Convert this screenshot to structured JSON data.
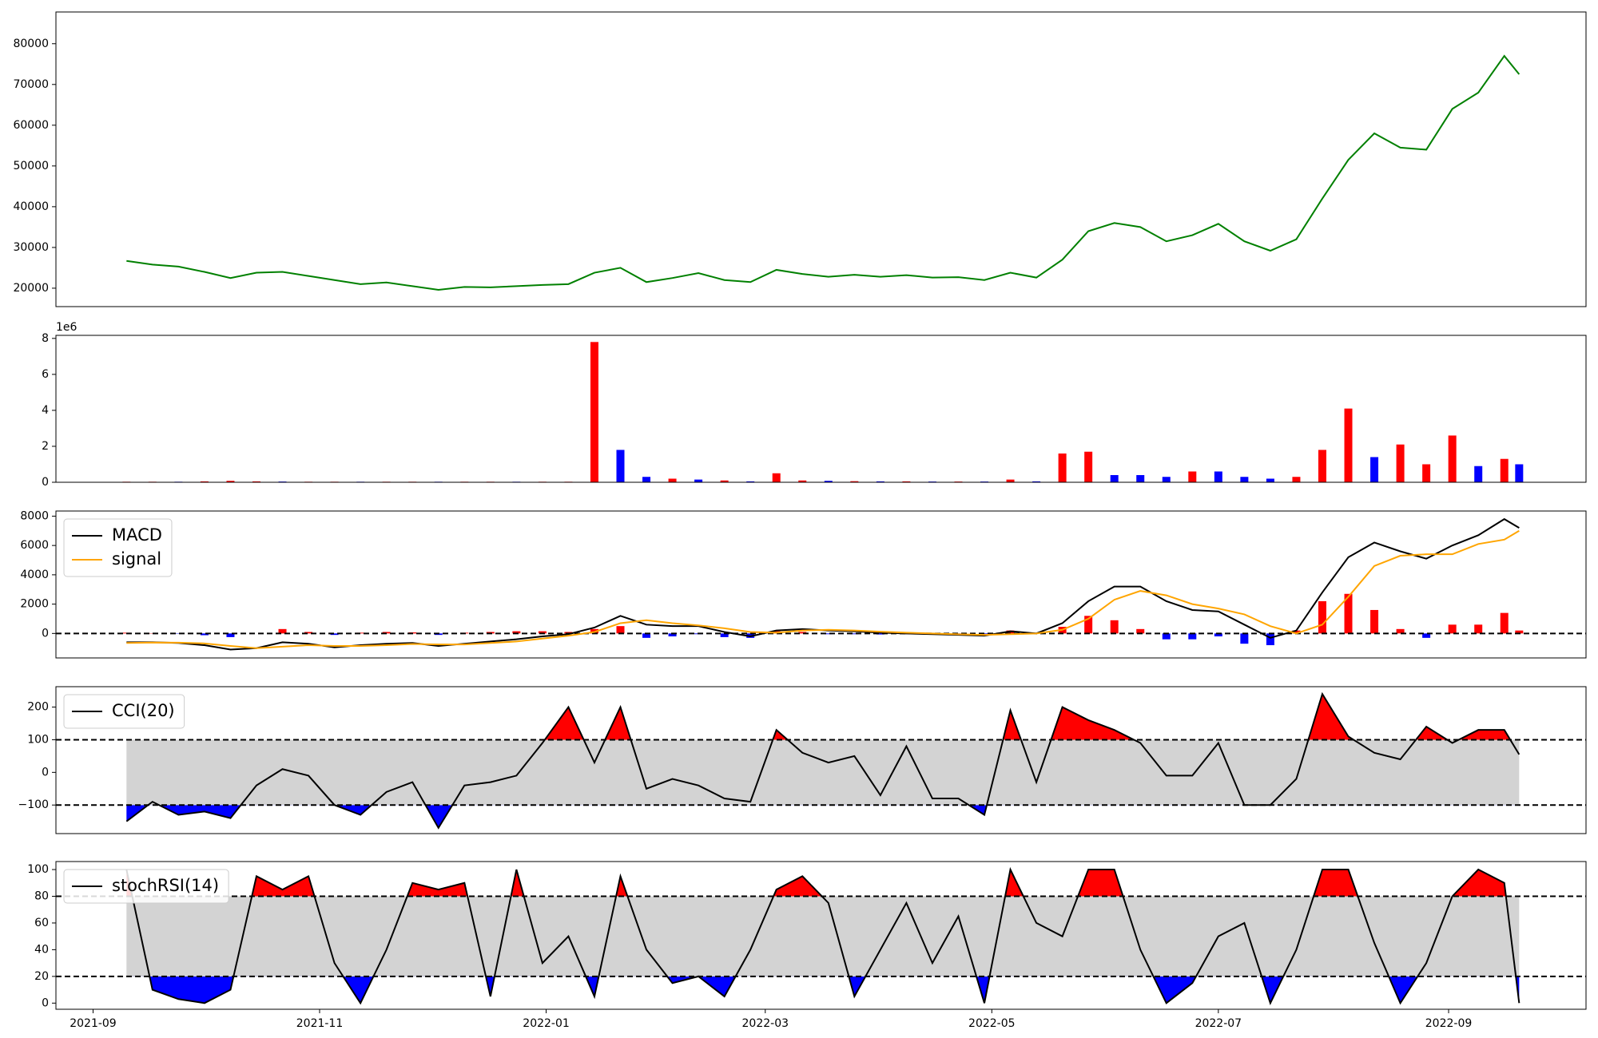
{
  "chart_data": [
    {
      "type": "line",
      "x": [
        "2021-09-10",
        "2021-09-17",
        "2021-09-24",
        "2021-10-01",
        "2021-10-08",
        "2021-10-15",
        "2021-10-22",
        "2021-10-29",
        "2021-11-05",
        "2021-11-12",
        "2021-11-19",
        "2021-11-26",
        "2021-12-03",
        "2021-12-10",
        "2021-12-17",
        "2021-12-24",
        "2021-12-31",
        "2022-01-07",
        "2022-01-14",
        "2022-01-21",
        "2022-01-28",
        "2022-02-04",
        "2022-02-11",
        "2022-02-18",
        "2022-02-25",
        "2022-03-04",
        "2022-03-11",
        "2022-03-18",
        "2022-03-25",
        "2022-04-01",
        "2022-04-08",
        "2022-04-15",
        "2022-04-22",
        "2022-04-29",
        "2022-05-06",
        "2022-05-13",
        "2022-05-20",
        "2022-05-27",
        "2022-06-03",
        "2022-06-10",
        "2022-06-17",
        "2022-06-24",
        "2022-07-01",
        "2022-07-08",
        "2022-07-15",
        "2022-07-22",
        "2022-07-29",
        "2022-08-05",
        "2022-08-12",
        "2022-08-19",
        "2022-08-26",
        "2022-09-02",
        "2022-09-09",
        "2022-09-16",
        "2022-09-20"
      ],
      "xlim": [
        "2021-08-22",
        "2022-10-08"
      ],
      "series": [
        {
          "color": "green",
          "values": [
            26700,
            25800,
            25300,
            24000,
            22500,
            23800,
            24000,
            23000,
            22000,
            21000,
            21400,
            20500,
            19600,
            20300,
            20200,
            20500,
            20800,
            21000,
            23800,
            25000,
            21500,
            22500,
            23700,
            22000,
            21500,
            24500,
            23500,
            22800,
            23300,
            22800,
            23200,
            22600,
            22700,
            22000,
            23800,
            22600,
            27000,
            34000,
            36000,
            35000,
            31500,
            33000,
            35800,
            31500,
            29200,
            32000,
            42000,
            51500,
            58000,
            54500,
            54000,
            64000,
            68000,
            77000,
            72500
          ]
        }
      ],
      "ylim": [
        15480,
        87790
      ],
      "yticks": [
        20000,
        30000,
        40000,
        50000,
        60000,
        70000,
        80000
      ]
    },
    {
      "type": "bar",
      "x": [
        "2021-09-10",
        "2021-09-17",
        "2021-09-24",
        "2021-10-01",
        "2021-10-08",
        "2021-10-15",
        "2021-10-22",
        "2021-10-29",
        "2021-11-05",
        "2021-11-12",
        "2021-11-19",
        "2021-11-26",
        "2021-12-03",
        "2021-12-10",
        "2021-12-17",
        "2021-12-24",
        "2021-12-31",
        "2022-01-07",
        "2022-01-14",
        "2022-01-21",
        "2022-01-28",
        "2022-02-04",
        "2022-02-11",
        "2022-02-18",
        "2022-02-25",
        "2022-03-04",
        "2022-03-11",
        "2022-03-18",
        "2022-03-25",
        "2022-04-01",
        "2022-04-08",
        "2022-04-15",
        "2022-04-22",
        "2022-04-29",
        "2022-05-06",
        "2022-05-13",
        "2022-05-20",
        "2022-05-27",
        "2022-06-03",
        "2022-06-10",
        "2022-06-17",
        "2022-06-24",
        "2022-07-01",
        "2022-07-08",
        "2022-07-15",
        "2022-07-22",
        "2022-07-29",
        "2022-08-05",
        "2022-08-12",
        "2022-08-19",
        "2022-08-26",
        "2022-09-02",
        "2022-09-09",
        "2022-09-16",
        "2022-09-20"
      ],
      "xlim": [
        "2021-08-22",
        "2022-10-08"
      ],
      "values": [
        0.03,
        0.03,
        0.03,
        0.05,
        0.08,
        0.05,
        0.04,
        0.03,
        0.03,
        0.03,
        0.03,
        0.03,
        0.03,
        0.03,
        0.03,
        0.03,
        0.03,
        0.03,
        7.8,
        1.8,
        0.3,
        0.2,
        0.15,
        0.1,
        0.05,
        0.5,
        0.1,
        0.08,
        0.06,
        0.05,
        0.05,
        0.04,
        0.04,
        0.04,
        0.15,
        0.05,
        1.6,
        1.7,
        0.4,
        0.4,
        0.3,
        0.6,
        0.6,
        0.3,
        0.2,
        0.3,
        1.8,
        4.1,
        1.4,
        2.1,
        1.0,
        2.6,
        0.9,
        1.3,
        1.0
      ],
      "colors": [
        "red",
        "red",
        "blue",
        "red",
        "red",
        "red",
        "blue",
        "red",
        "red",
        "blue",
        "red",
        "red",
        "blue",
        "red",
        "red",
        "blue",
        "red",
        "red",
        "red",
        "blue",
        "blue",
        "red",
        "blue",
        "red",
        "blue",
        "red",
        "red",
        "blue",
        "red",
        "blue",
        "red",
        "blue",
        "red",
        "blue",
        "red",
        "blue",
        "red",
        "red",
        "blue",
        "blue",
        "blue",
        "red",
        "blue",
        "blue",
        "blue",
        "red",
        "red",
        "red",
        "blue",
        "red",
        "red",
        "red",
        "blue",
        "red",
        "blue"
      ],
      "ylim": [
        0,
        8.17
      ],
      "yticks": [
        0,
        2,
        4,
        6,
        8
      ],
      "offset_label": "1e6"
    },
    {
      "type": "line",
      "x": [
        "2021-09-10",
        "2021-09-17",
        "2021-09-24",
        "2021-10-01",
        "2021-10-08",
        "2021-10-15",
        "2021-10-22",
        "2021-10-29",
        "2021-11-05",
        "2021-11-12",
        "2021-11-19",
        "2021-11-26",
        "2021-12-03",
        "2021-12-10",
        "2021-12-17",
        "2021-12-24",
        "2021-12-31",
        "2022-01-07",
        "2022-01-14",
        "2022-01-21",
        "2022-01-28",
        "2022-02-04",
        "2022-02-11",
        "2022-02-18",
        "2022-02-25",
        "2022-03-04",
        "2022-03-11",
        "2022-03-18",
        "2022-03-25",
        "2022-04-01",
        "2022-04-08",
        "2022-04-15",
        "2022-04-22",
        "2022-04-29",
        "2022-05-06",
        "2022-05-13",
        "2022-05-20",
        "2022-05-27",
        "2022-06-03",
        "2022-06-10",
        "2022-06-17",
        "2022-06-24",
        "2022-07-01",
        "2022-07-08",
        "2022-07-15",
        "2022-07-22",
        "2022-07-29",
        "2022-08-05",
        "2022-08-12",
        "2022-08-19",
        "2022-08-26",
        "2022-09-02",
        "2022-09-09",
        "2022-09-16",
        "2022-09-20"
      ],
      "xlim": [
        "2021-08-22",
        "2022-10-08"
      ],
      "series": [
        {
          "name": "MACD",
          "color": "black",
          "values": [
            -600,
            -600,
            -650,
            -800,
            -1100,
            -1000,
            -600,
            -700,
            -950,
            -800,
            -700,
            -650,
            -850,
            -700,
            -550,
            -400,
            -200,
            -50,
            400,
            1200,
            600,
            500,
            500,
            100,
            -200,
            200,
            300,
            200,
            150,
            50,
            0,
            -50,
            -100,
            -150,
            150,
            0,
            700,
            2200,
            3200,
            3200,
            2200,
            1600,
            1500,
            600,
            -300,
            200,
            2800,
            5200,
            6200,
            5600,
            5100,
            6000,
            6700,
            7800,
            7200
          ]
        },
        {
          "name": "signal",
          "color": "orange",
          "values": [
            -650,
            -620,
            -630,
            -680,
            -850,
            -1000,
            -900,
            -800,
            -850,
            -850,
            -800,
            -720,
            -750,
            -750,
            -650,
            -550,
            -350,
            -150,
            100,
            700,
            900,
            700,
            550,
            350,
            100,
            50,
            200,
            250,
            200,
            120,
            50,
            0,
            -60,
            -100,
            -50,
            0,
            250,
            1000,
            2300,
            2900,
            2600,
            2000,
            1700,
            1300,
            500,
            0,
            600,
            2500,
            4600,
            5300,
            5400,
            5400,
            6100,
            6400,
            7000
          ]
        }
      ],
      "histogram": [
        50,
        20,
        -20,
        -120,
        -250,
        0,
        300,
        100,
        -100,
        50,
        100,
        70,
        -100,
        50,
        100,
        150,
        150,
        100,
        300,
        500,
        -300,
        -200,
        -50,
        -250,
        -300,
        150,
        100,
        -50,
        -50,
        -70,
        -50,
        -50,
        -40,
        -50,
        200,
        0,
        450,
        1200,
        900,
        300,
        -400,
        -400,
        -200,
        -700,
        -800,
        200,
        2200,
        2700,
        1600,
        300,
        -300,
        600,
        600,
        1400,
        200
      ],
      "positive_color": "red",
      "negative_color": "blue",
      "hlines": [
        0
      ],
      "ylim": [
        -1670,
        8350
      ],
      "yticks": [
        0,
        2000,
        4000,
        6000,
        8000
      ],
      "legend": "upper left"
    },
    {
      "type": "oscillator",
      "x": [
        "2021-09-10",
        "2021-09-17",
        "2021-09-24",
        "2021-10-01",
        "2021-10-08",
        "2021-10-15",
        "2021-10-22",
        "2021-10-29",
        "2021-11-05",
        "2021-11-12",
        "2021-11-19",
        "2021-11-26",
        "2021-12-03",
        "2021-12-10",
        "2021-12-17",
        "2021-12-24",
        "2021-12-31",
        "2022-01-07",
        "2022-01-14",
        "2022-01-21",
        "2022-01-28",
        "2022-02-04",
        "2022-02-11",
        "2022-02-18",
        "2022-02-25",
        "2022-03-04",
        "2022-03-11",
        "2022-03-18",
        "2022-03-25",
        "2022-04-01",
        "2022-04-08",
        "2022-04-15",
        "2022-04-22",
        "2022-04-29",
        "2022-05-06",
        "2022-05-13",
        "2022-05-20",
        "2022-05-27",
        "2022-06-03",
        "2022-06-10",
        "2022-06-17",
        "2022-06-24",
        "2022-07-01",
        "2022-07-08",
        "2022-07-15",
        "2022-07-22",
        "2022-07-29",
        "2022-08-05",
        "2022-08-12",
        "2022-08-19",
        "2022-08-26",
        "2022-09-02",
        "2022-09-09",
        "2022-09-16",
        "2022-09-20"
      ],
      "xlim": [
        "2021-08-22",
        "2022-10-08"
      ],
      "series": [
        {
          "name": "CCI(20)",
          "color": "black",
          "values": [
            -150,
            -90,
            -130,
            -120,
            -140,
            -40,
            10,
            -10,
            -100,
            -130,
            -60,
            -30,
            -170,
            -40,
            -30,
            -10,
            90,
            200,
            30,
            200,
            -50,
            -20,
            -40,
            -80,
            -90,
            130,
            60,
            30,
            50,
            -70,
            80,
            -80,
            -80,
            -130,
            190,
            -30,
            200,
            160,
            130,
            90,
            -10,
            -10,
            90,
            -100,
            -100,
            -20,
            240,
            110,
            60,
            40,
            140,
            90,
            130,
            130,
            55
          ]
        }
      ],
      "thresholds": [
        -100,
        100
      ],
      "band_color": "lightgray",
      "above_color": "red",
      "below_color": "blue",
      "ylim": [
        -187.5,
        262.5
      ],
      "yticks": [
        {
          "value": -100,
          "label": "−100"
        },
        0,
        100,
        200
      ],
      "legend": "upper left"
    },
    {
      "type": "oscillator",
      "x": [
        "2021-09-10",
        "2021-09-17",
        "2021-09-24",
        "2021-10-01",
        "2021-10-08",
        "2021-10-15",
        "2021-10-22",
        "2021-10-29",
        "2021-11-05",
        "2021-11-12",
        "2021-11-19",
        "2021-11-26",
        "2021-12-03",
        "2021-12-10",
        "2021-12-17",
        "2021-12-24",
        "2021-12-31",
        "2022-01-07",
        "2022-01-14",
        "2022-01-21",
        "2022-01-28",
        "2022-02-04",
        "2022-02-11",
        "2022-02-18",
        "2022-02-25",
        "2022-03-04",
        "2022-03-11",
        "2022-03-18",
        "2022-03-25",
        "2022-04-01",
        "2022-04-08",
        "2022-04-15",
        "2022-04-22",
        "2022-04-29",
        "2022-05-06",
        "2022-05-13",
        "2022-05-20",
        "2022-05-27",
        "2022-06-03",
        "2022-06-10",
        "2022-06-17",
        "2022-06-24",
        "2022-07-01",
        "2022-07-08",
        "2022-07-15",
        "2022-07-22",
        "2022-07-29",
        "2022-08-05",
        "2022-08-12",
        "2022-08-19",
        "2022-08-26",
        "2022-09-02",
        "2022-09-09",
        "2022-09-16",
        "2022-09-20"
      ],
      "xlim": [
        "2021-08-22",
        "2022-10-08"
      ],
      "xticks": [
        {
          "value": "2021-09-01",
          "label": "2021-09"
        },
        {
          "value": "2021-11-01",
          "label": "2021-11"
        },
        {
          "value": "2022-01-01",
          "label": "2022-01"
        },
        {
          "value": "2022-03-01",
          "label": "2022-03"
        },
        {
          "value": "2022-05-01",
          "label": "2022-05"
        },
        {
          "value": "2022-07-01",
          "label": "2022-07"
        },
        {
          "value": "2022-09-01",
          "label": "2022-09"
        }
      ],
      "series": [
        {
          "name": "stochRSI(14)",
          "color": "black",
          "values": [
            100,
            10,
            3,
            0,
            10,
            95,
            85,
            95,
            30,
            0,
            40,
            90,
            85,
            90,
            5,
            100,
            30,
            50,
            5,
            95,
            40,
            15,
            20,
            5,
            40,
            85,
            95,
            75,
            5,
            40,
            75,
            30,
            65,
            0,
            100,
            60,
            50,
            100,
            100,
            40,
            0,
            15,
            50,
            60,
            0,
            40,
            100,
            100,
            45,
            0,
            30,
            80,
            100,
            90,
            0
          ]
        }
      ],
      "thresholds": [
        20,
        80
      ],
      "band_color": "lightgray",
      "above_color": "red",
      "below_color": "blue",
      "ylim": [
        -4.6,
        106
      ],
      "yticks": [
        0,
        20,
        40,
        60,
        80,
        100
      ],
      "legend": "upper left"
    }
  ]
}
